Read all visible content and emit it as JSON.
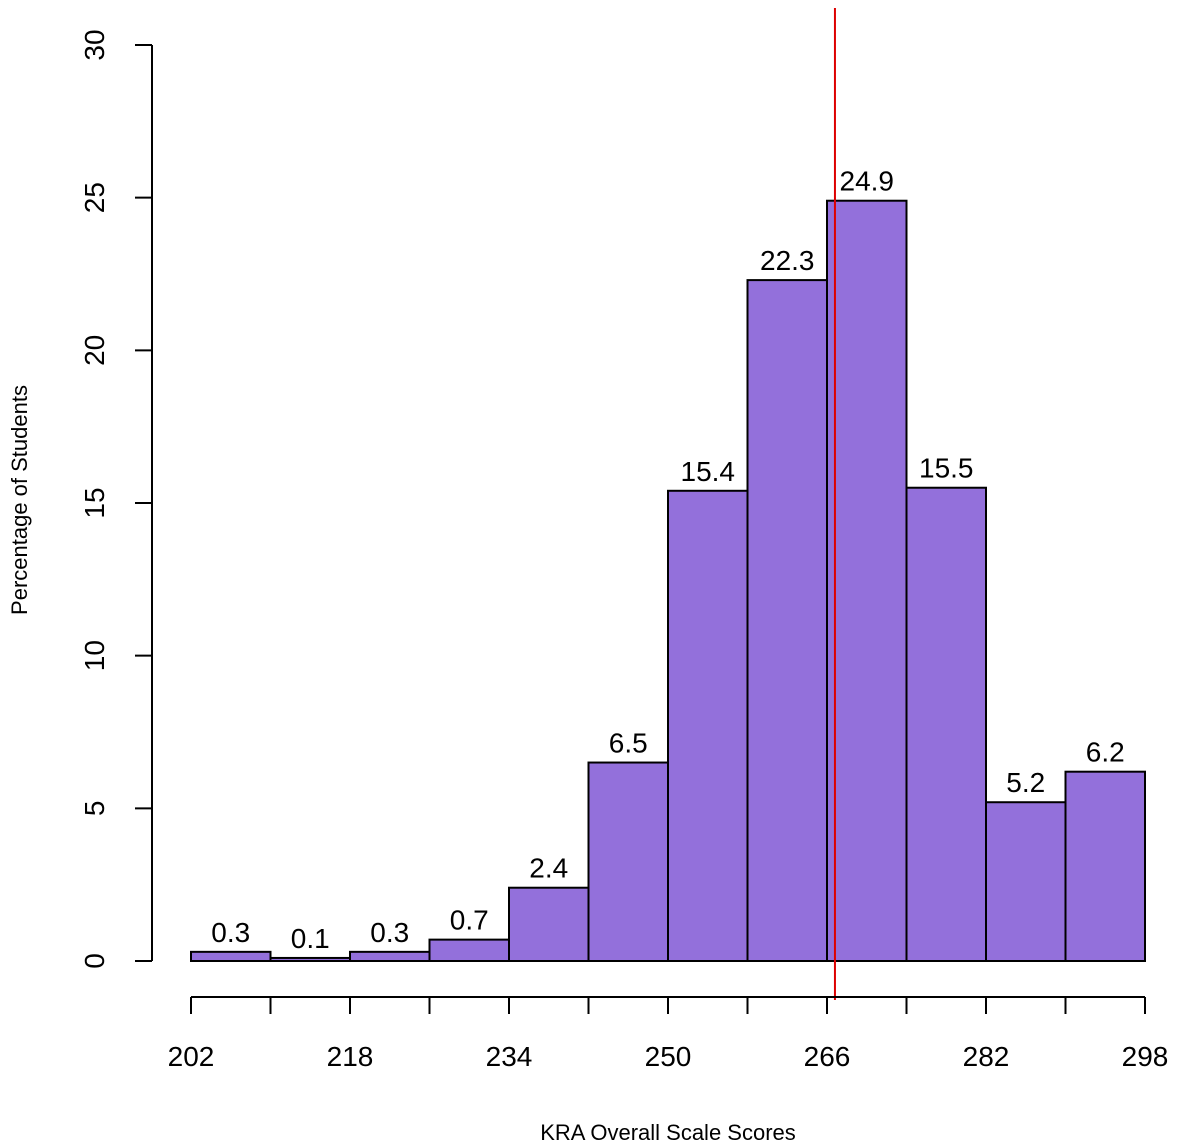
{
  "chart_data": {
    "type": "bar",
    "title": "",
    "xlabel": "KRA Overall Scale Scores",
    "ylabel": "Percentage of Students",
    "bin_edges": [
      202,
      210,
      218,
      226,
      234,
      242,
      250,
      258,
      266,
      274,
      282,
      290,
      298
    ],
    "values": [
      0.3,
      0.1,
      0.3,
      0.7,
      2.4,
      6.5,
      15.4,
      22.3,
      24.9,
      15.5,
      5.2,
      6.2
    ],
    "value_labels": [
      "0.3",
      "0.1",
      "0.3",
      "0.7",
      "2.4",
      "6.5",
      "15.4",
      "22.3",
      "24.9",
      "15.5",
      "5.2",
      "6.2"
    ],
    "x_tick_values": [
      202,
      210,
      218,
      226,
      234,
      242,
      250,
      258,
      266,
      274,
      282,
      290,
      298
    ],
    "x_tick_labels": [
      "202",
      "218",
      "234",
      "250",
      "266",
      "282",
      "298"
    ],
    "x_labeled_ticks": [
      202,
      218,
      234,
      250,
      266,
      282,
      298
    ],
    "y_ticks": [
      "0",
      "5",
      "10",
      "15",
      "20",
      "25",
      "30"
    ],
    "ylim": [
      0,
      30
    ],
    "xlim": [
      202,
      298
    ],
    "reference_line_x": 266.8,
    "bar_color": "#9370DB",
    "reference_line_color": "#DD0000",
    "grid": false,
    "legend": "none"
  }
}
